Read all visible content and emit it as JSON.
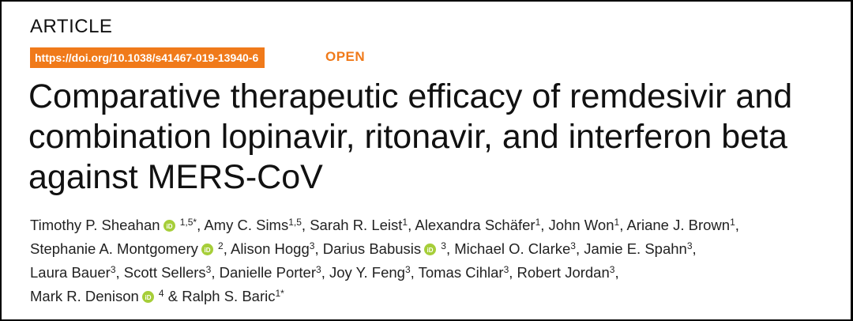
{
  "header": {
    "article_label": "ARTICLE",
    "doi": "https://doi.org/10.1038/s41467-019-13940-6",
    "open_label": "OPEN"
  },
  "title": {
    "line1": "Comparative therapeutic efficacy of remdesivir and",
    "line2": "combination lopinavir, ritonavir, and interferon beta",
    "line3": "against MERS-CoV"
  },
  "authors": [
    {
      "name": "Timothy P. Sheahan",
      "aff": "1,5*"
    },
    {
      "name": "Amy C. Sims",
      "aff": "1,5"
    },
    {
      "name": "Sarah R. Leist",
      "aff": "1"
    },
    {
      "name": "Alexandra Schäfer",
      "aff": "1"
    },
    {
      "name": "John Won",
      "aff": "1"
    },
    {
      "name": "Ariane J. Brown",
      "aff": "1"
    },
    {
      "name": "Stephanie A. Montgomery",
      "aff": "2"
    },
    {
      "name": "Alison Hogg",
      "aff": "3"
    },
    {
      "name": "Darius Babusis",
      "aff": "3"
    },
    {
      "name": "Michael O. Clarke",
      "aff": "3"
    },
    {
      "name": "Jamie E. Spahn",
      "aff": "3"
    },
    {
      "name": "Laura Bauer",
      "aff": "3"
    },
    {
      "name": "Scott Sellers",
      "aff": "3"
    },
    {
      "name": "Danielle Porter",
      "aff": "3"
    },
    {
      "name": "Joy Y. Feng",
      "aff": "3"
    },
    {
      "name": "Tomas Cihlar",
      "aff": "3"
    },
    {
      "name": "Robert Jordan",
      "aff": "3"
    },
    {
      "name": "Mark R. Denison",
      "aff": "4"
    },
    {
      "name": "Ralph S. Baric",
      "aff": "1*"
    }
  ],
  "colors": {
    "accent": "#f07a1a",
    "orcid": "#a6ce39"
  },
  "icons": {
    "orcid": "orcid-icon"
  }
}
